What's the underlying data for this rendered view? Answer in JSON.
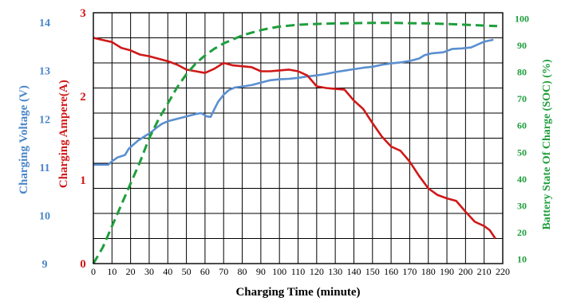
{
  "chart_data": {
    "type": "line",
    "xlabel": "Charging Time (minute)",
    "x_ticks": [
      0,
      10,
      20,
      30,
      40,
      50,
      60,
      70,
      80,
      90,
      100,
      110,
      120,
      130,
      140,
      150,
      160,
      170,
      180,
      190,
      200,
      210,
      220
    ],
    "xlim": [
      0,
      220
    ],
    "grid": true,
    "axes": {
      "voltage": {
        "label": "Charging Voltage (V)",
        "ticks": [
          "9",
          "10",
          "11",
          "12",
          "13",
          "14"
        ],
        "range": [
          9,
          14.2
        ],
        "color": "#4a86c8"
      },
      "ampere": {
        "label": "Charging Ampere(A)",
        "ticks": [
          "0",
          "1",
          "2",
          "3"
        ],
        "range": [
          0,
          3.0
        ],
        "color": "#d01818"
      },
      "soc": {
        "label": "Battery State Of Charge (SOC)  (%)",
        "ticks": [
          "10",
          "20",
          "30",
          "40",
          "50",
          "60",
          "70",
          "80",
          "90",
          "100"
        ],
        "range": [
          8,
          102
        ],
        "color": "#1e9e3c"
      }
    },
    "series": [
      {
        "axis": "voltage",
        "style": "solid",
        "color": "#5a8fd0",
        "points": [
          [
            0,
            11.05
          ],
          [
            8,
            11.05
          ],
          [
            10,
            11.12
          ],
          [
            13,
            11.2
          ],
          [
            17,
            11.25
          ],
          [
            19,
            11.38
          ],
          [
            21,
            11.45
          ],
          [
            24,
            11.55
          ],
          [
            28,
            11.65
          ],
          [
            31,
            11.72
          ],
          [
            34,
            11.82
          ],
          [
            37,
            11.9
          ],
          [
            40,
            11.95
          ],
          [
            45,
            12.0
          ],
          [
            50,
            12.05
          ],
          [
            55,
            12.1
          ],
          [
            58,
            12.12
          ],
          [
            61,
            12.05
          ],
          [
            63,
            12.04
          ],
          [
            65,
            12.2
          ],
          [
            67,
            12.35
          ],
          [
            70,
            12.5
          ],
          [
            73,
            12.6
          ],
          [
            76,
            12.65
          ],
          [
            80,
            12.67
          ],
          [
            85,
            12.7
          ],
          [
            90,
            12.75
          ],
          [
            95,
            12.8
          ],
          [
            100,
            12.82
          ],
          [
            105,
            12.83
          ],
          [
            110,
            12.85
          ],
          [
            115,
            12.88
          ],
          [
            120,
            12.9
          ],
          [
            125,
            12.93
          ],
          [
            130,
            12.97
          ],
          [
            135,
            13.0
          ],
          [
            140,
            13.03
          ],
          [
            145,
            13.06
          ],
          [
            150,
            13.08
          ],
          [
            155,
            13.12
          ],
          [
            160,
            13.15
          ],
          [
            165,
            13.17
          ],
          [
            170,
            13.2
          ],
          [
            175,
            13.25
          ],
          [
            178,
            13.32
          ],
          [
            182,
            13.36
          ],
          [
            188,
            13.38
          ],
          [
            193,
            13.45
          ],
          [
            198,
            13.46
          ],
          [
            203,
            13.48
          ],
          [
            207,
            13.55
          ],
          [
            210,
            13.6
          ],
          [
            215,
            13.64
          ]
        ]
      },
      {
        "axis": "ampere",
        "style": "solid",
        "color": "#d01818",
        "points": [
          [
            0,
            2.7
          ],
          [
            10,
            2.65
          ],
          [
            15,
            2.58
          ],
          [
            20,
            2.55
          ],
          [
            25,
            2.5
          ],
          [
            30,
            2.48
          ],
          [
            35,
            2.45
          ],
          [
            40,
            2.42
          ],
          [
            45,
            2.38
          ],
          [
            50,
            2.32
          ],
          [
            55,
            2.3
          ],
          [
            60,
            2.28
          ],
          [
            65,
            2.33
          ],
          [
            70,
            2.4
          ],
          [
            75,
            2.37
          ],
          [
            80,
            2.36
          ],
          [
            85,
            2.35
          ],
          [
            90,
            2.3
          ],
          [
            95,
            2.3
          ],
          [
            100,
            2.31
          ],
          [
            105,
            2.32
          ],
          [
            110,
            2.3
          ],
          [
            115,
            2.25
          ],
          [
            120,
            2.12
          ],
          [
            125,
            2.1
          ],
          [
            130,
            2.09
          ],
          [
            135,
            2.08
          ],
          [
            140,
            1.95
          ],
          [
            145,
            1.85
          ],
          [
            150,
            1.68
          ],
          [
            155,
            1.52
          ],
          [
            160,
            1.4
          ],
          [
            165,
            1.35
          ],
          [
            170,
            1.22
          ],
          [
            175,
            1.05
          ],
          [
            180,
            0.9
          ],
          [
            185,
            0.82
          ],
          [
            190,
            0.78
          ],
          [
            195,
            0.75
          ],
          [
            200,
            0.62
          ],
          [
            205,
            0.5
          ],
          [
            210,
            0.45
          ],
          [
            213,
            0.4
          ],
          [
            216,
            0.3
          ]
        ]
      },
      {
        "axis": "soc",
        "style": "dashed",
        "color": "#1e9e3c",
        "points": [
          [
            0,
            8
          ],
          [
            5,
            14
          ],
          [
            10,
            22
          ],
          [
            15,
            30
          ],
          [
            20,
            38
          ],
          [
            25,
            46
          ],
          [
            30,
            55
          ],
          [
            35,
            62
          ],
          [
            40,
            68
          ],
          [
            45,
            74
          ],
          [
            50,
            79
          ],
          [
            55,
            83
          ],
          [
            60,
            86
          ],
          [
            65,
            88.5
          ],
          [
            70,
            90.5
          ],
          [
            75,
            92
          ],
          [
            80,
            93.5
          ],
          [
            85,
            94.5
          ],
          [
            90,
            95.5
          ],
          [
            95,
            96.2
          ],
          [
            100,
            96.8
          ],
          [
            110,
            97.5
          ],
          [
            120,
            97.8
          ],
          [
            130,
            98
          ],
          [
            140,
            98.1
          ],
          [
            150,
            98.2
          ],
          [
            160,
            98.2
          ],
          [
            170,
            98.1
          ],
          [
            180,
            98
          ],
          [
            190,
            97.8
          ],
          [
            200,
            97.5
          ],
          [
            210,
            97.2
          ],
          [
            217,
            97
          ]
        ]
      }
    ]
  }
}
